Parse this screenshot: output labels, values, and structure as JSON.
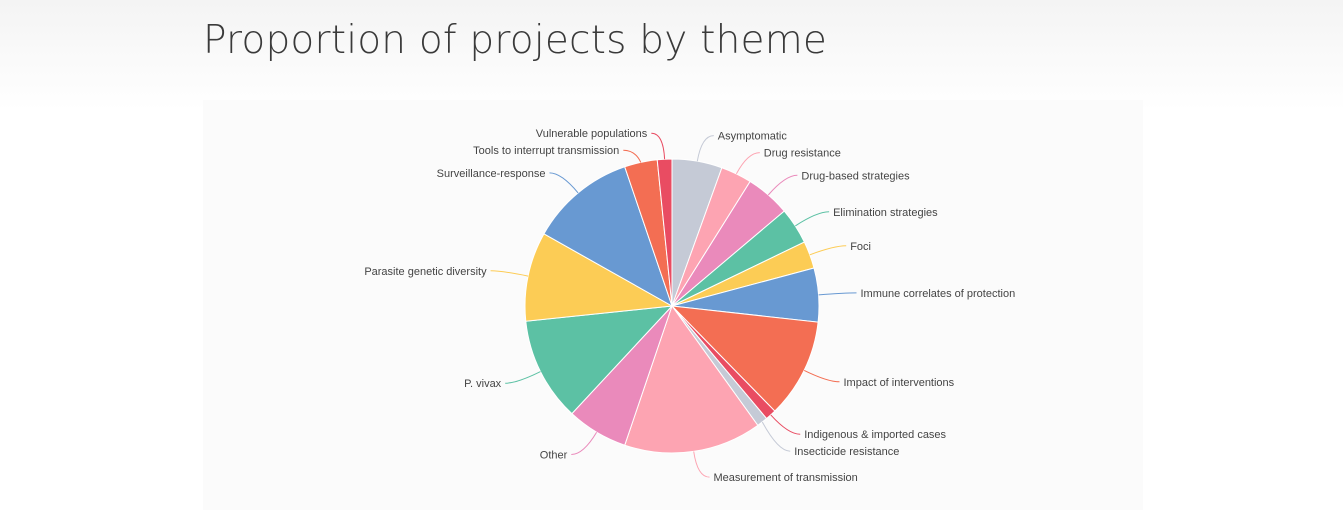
{
  "header": {
    "title": "Proportion of projects by theme"
  },
  "chart_data": {
    "type": "pie",
    "title": "Proportion of projects by theme",
    "start_angle_deg": 0,
    "direction": "clockwise",
    "legend": "none",
    "labels_outside_with_leaders": true,
    "slices": [
      {
        "label": "Asymptomatic",
        "value": 5.5,
        "color": "#c5cad6"
      },
      {
        "label": "Drug resistance",
        "value": 3.4,
        "color": "#fda4b2"
      },
      {
        "label": "Drug-based strategies",
        "value": 4.9,
        "color": "#ea8abb"
      },
      {
        "label": "Elimination strategies",
        "value": 4.0,
        "color": "#5cc1a4"
      },
      {
        "label": "Foci",
        "value": 3.0,
        "color": "#fccc55"
      },
      {
        "label": "Immune correlates of protection",
        "value": 5.9,
        "color": "#6899d2"
      },
      {
        "label": "Impact of interventions",
        "value": 10.9,
        "color": "#f36e53"
      },
      {
        "label": "Indigenous & imported cases",
        "value": 1.2,
        "color": "#e94c62"
      },
      {
        "label": "Insecticide resistance",
        "value": 1.2,
        "color": "#c5cad6"
      },
      {
        "label": "Measurement of transmission",
        "value": 15.1,
        "color": "#fda4b2"
      },
      {
        "label": "Other",
        "value": 6.7,
        "color": "#ea8abb"
      },
      {
        "label": "P. vivax",
        "value": 11.4,
        "color": "#5cc1a4"
      },
      {
        "label": "Parasite genetic diversity",
        "value": 9.8,
        "color": "#fccc55"
      },
      {
        "label": "Surveillance-response",
        "value": 11.6,
        "color": "#6899d2"
      },
      {
        "label": "Tools to interrupt transmission",
        "value": 3.6,
        "color": "#f36e53"
      },
      {
        "label": "Vulnerable populations",
        "value": 1.6,
        "color": "#e94c62"
      }
    ]
  }
}
